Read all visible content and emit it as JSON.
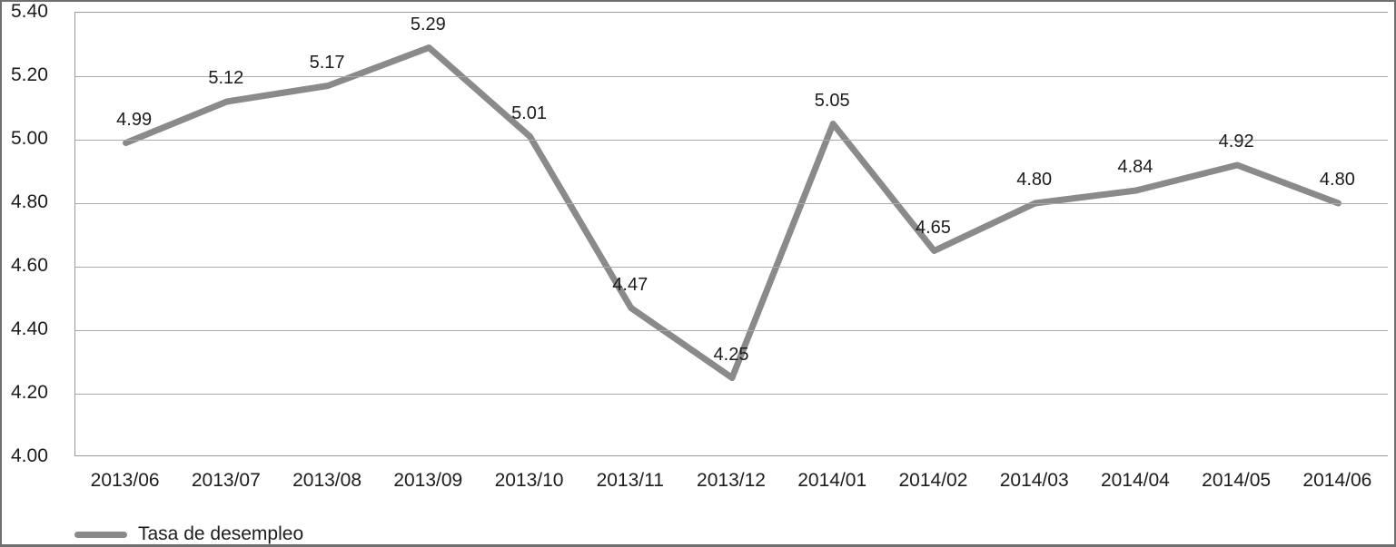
{
  "figure": {
    "background": "#ffffff",
    "border_color": "#6f6f6f"
  },
  "chart_data": {
    "type": "line",
    "title": "",
    "xlabel": "",
    "ylabel": "",
    "categories": [
      "2013/06",
      "2013/07",
      "2013/08",
      "2013/09",
      "2013/10",
      "2013/11",
      "2013/12",
      "2014/01",
      "2014/02",
      "2014/03",
      "2014/04",
      "2014/05",
      "2014/06"
    ],
    "series": [
      {
        "name": "Tasa de desempleo",
        "values": [
          4.99,
          5.12,
          5.17,
          5.29,
          5.01,
          4.47,
          4.25,
          5.05,
          4.65,
          4.8,
          4.84,
          4.92,
          4.8
        ],
        "color": "#8a8a8a"
      }
    ],
    "data_labels": [
      "4.99",
      "5.12",
      "5.17",
      "5.29",
      "5.01",
      "4.47",
      "4.25",
      "5.05",
      "4.65",
      "4.80",
      "4.84",
      "4.92",
      "4.80"
    ],
    "ylim": [
      4.0,
      5.4
    ],
    "ytick_step": 0.2,
    "ytick_labels": [
      "5.40",
      "5.20",
      "5.00",
      "4.80",
      "4.60",
      "4.40",
      "4.20",
      "4.00"
    ],
    "grid": true,
    "gridline_color": "#ababab",
    "text_color": "#1c1c1c",
    "legend_position": "bottom-left"
  },
  "legend": {
    "label": "Tasa de desempleo"
  }
}
